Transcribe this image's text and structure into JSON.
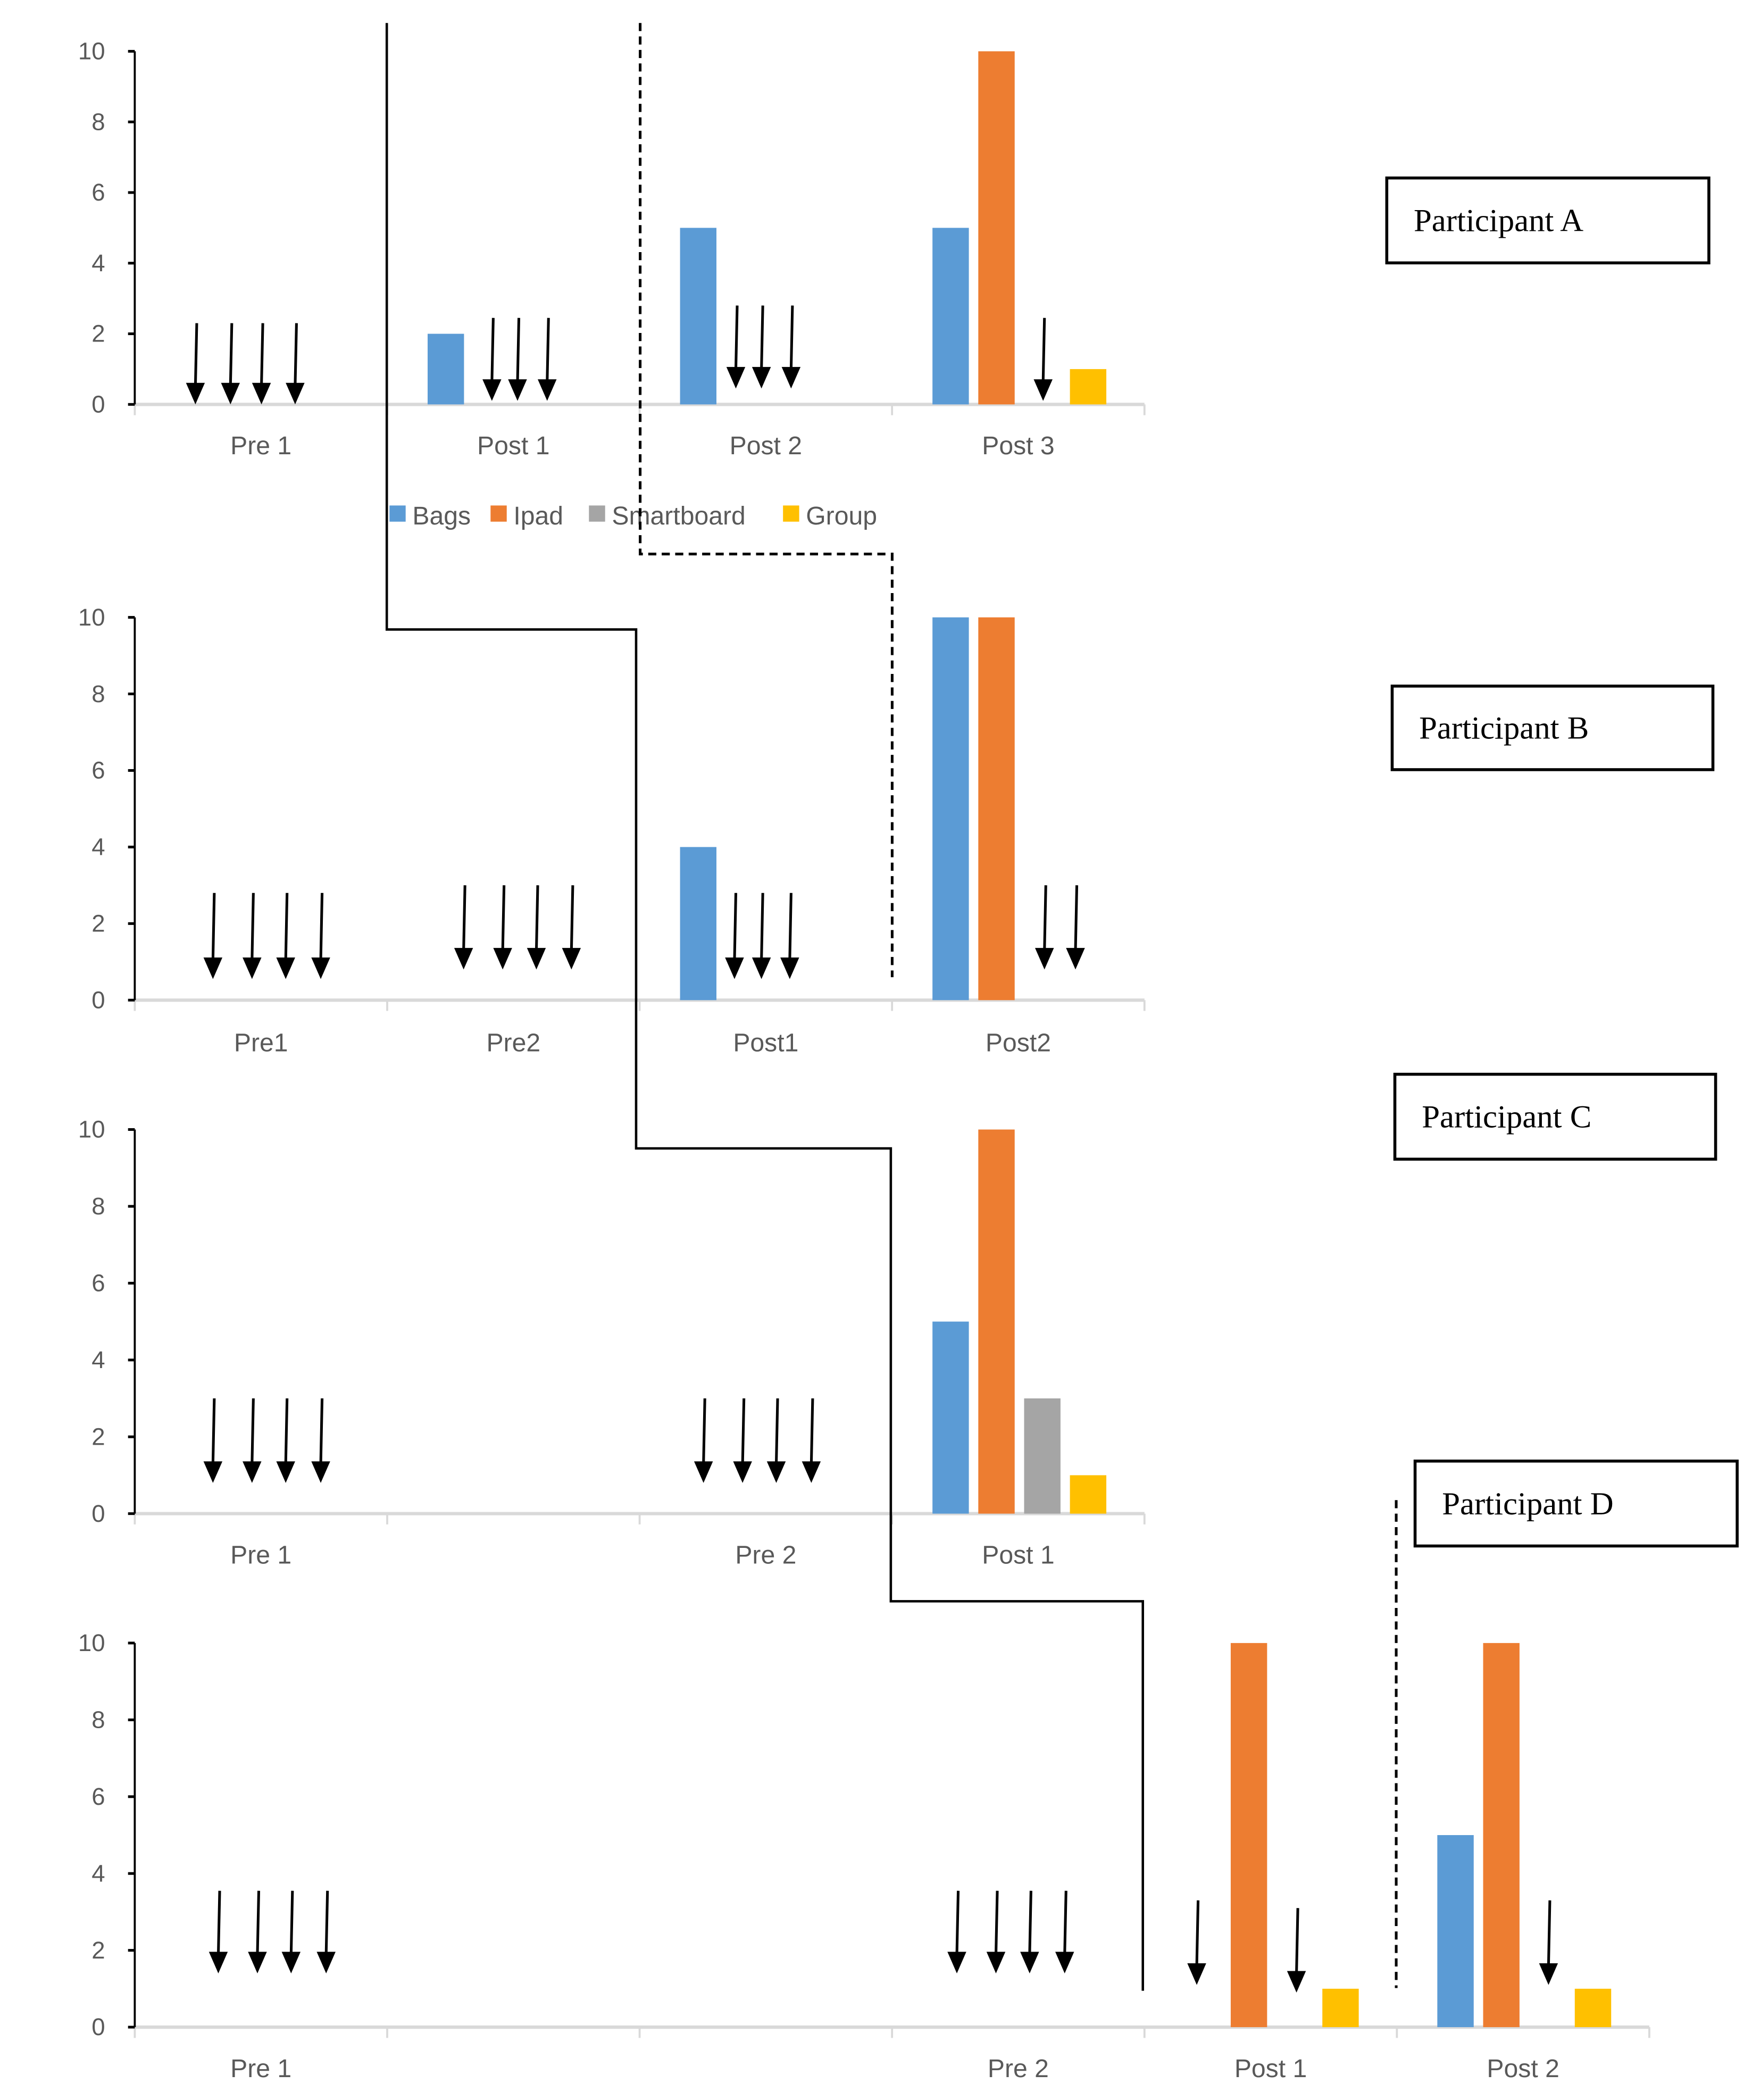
{
  "chart_data": {
    "type": "bar",
    "legend": {
      "position": "bottom-of-first-panel",
      "entries": [
        "Bags",
        "Ipad",
        "Smartboard",
        "Group"
      ]
    },
    "colors": {
      "Bags": "#5b9bd5",
      "Ipad": "#ed7d31",
      "Smartboard": "#a5a5a5",
      "Group": "#ffc000"
    },
    "ylim": [
      0,
      10
    ],
    "yticks": [
      "0",
      "2",
      "4",
      "6",
      "8",
      "10"
    ],
    "panels": [
      {
        "participant": "Participant A",
        "categories": [
          "Pre 1",
          "Post 1",
          "Post 2",
          "Post 3"
        ],
        "series": [
          {
            "name": "Bags",
            "values": [
              0,
              2,
              5,
              5
            ]
          },
          {
            "name": "Ipad",
            "values": [
              0,
              0,
              0,
              10
            ]
          },
          {
            "name": "Smartboard",
            "values": [
              0,
              0,
              0,
              0
            ]
          },
          {
            "name": "Group",
            "values": [
              0,
              0,
              0,
              1
            ]
          }
        ]
      },
      {
        "participant": "Participant B",
        "categories": [
          "Pre1",
          "Pre2",
          "Post1",
          "Post2"
        ],
        "series": [
          {
            "name": "Bags",
            "values": [
              0,
              0,
              4,
              10
            ]
          },
          {
            "name": "Ipad",
            "values": [
              0,
              0,
              0,
              10
            ]
          },
          {
            "name": "Smartboard",
            "values": [
              0,
              0,
              0,
              0
            ]
          },
          {
            "name": "Group",
            "values": [
              0,
              0,
              0,
              0
            ]
          }
        ]
      },
      {
        "participant": "Participant C",
        "categories": [
          "Pre 1",
          "",
          "Pre 2",
          "Post 1"
        ],
        "series": [
          {
            "name": "Bags",
            "values": [
              0,
              0,
              0,
              5
            ]
          },
          {
            "name": "Ipad",
            "values": [
              0,
              0,
              0,
              10
            ]
          },
          {
            "name": "Smartboard",
            "values": [
              0,
              0,
              0,
              3
            ]
          },
          {
            "name": "Group",
            "values": [
              0,
              0,
              0,
              1
            ]
          }
        ]
      },
      {
        "participant": "Participant D",
        "categories": [
          "Pre 1",
          "",
          "",
          "Pre 2",
          "Post 1",
          "Post 2"
        ],
        "series": [
          {
            "name": "Bags",
            "values": [
              0,
              0,
              0,
              0,
              0,
              5
            ]
          },
          {
            "name": "Ipad",
            "values": [
              0,
              0,
              0,
              0,
              10,
              10
            ]
          },
          {
            "name": "Smartboard",
            "values": [
              0,
              0,
              0,
              0,
              0,
              0
            ]
          },
          {
            "name": "Group",
            "values": [
              0,
              0,
              0,
              0,
              1,
              1
            ]
          }
        ]
      }
    ]
  }
}
